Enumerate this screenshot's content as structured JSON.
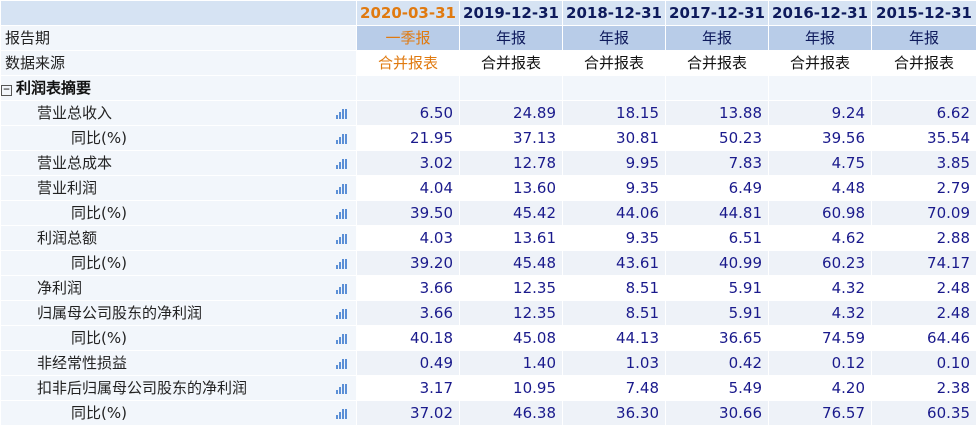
{
  "header": {
    "periods": [
      "2020-03-31",
      "2019-12-31",
      "2018-12-31",
      "2017-12-31",
      "2016-12-31",
      "2015-12-31"
    ]
  },
  "report_type_row": {
    "label": "报告期",
    "values": [
      "一季报",
      "年报",
      "年报",
      "年报",
      "年报",
      "年报"
    ]
  },
  "data_source_row": {
    "label": "数据来源",
    "values": [
      "合并报表",
      "合并报表",
      "合并报表",
      "合并报表",
      "合并报表",
      "合并报表"
    ]
  },
  "section": {
    "toggle": "⊟",
    "title": "利润表摘要"
  },
  "rows": [
    {
      "label": "营业总收入",
      "values": [
        "6.50",
        "24.89",
        "18.15",
        "13.88",
        "9.24",
        "6.62"
      ]
    },
    {
      "label": "同比(%)",
      "values": [
        "21.95",
        "37.13",
        "30.81",
        "50.23",
        "39.56",
        "35.54"
      ]
    },
    {
      "label": "营业总成本",
      "values": [
        "3.02",
        "12.78",
        "9.95",
        "7.83",
        "4.75",
        "3.85"
      ]
    },
    {
      "label": "营业利润",
      "values": [
        "4.04",
        "13.60",
        "9.35",
        "6.49",
        "4.48",
        "2.79"
      ]
    },
    {
      "label": "同比(%)",
      "values": [
        "39.50",
        "45.42",
        "44.06",
        "44.81",
        "60.98",
        "70.09"
      ]
    },
    {
      "label": "利润总额",
      "values": [
        "4.03",
        "13.61",
        "9.35",
        "6.51",
        "4.62",
        "2.88"
      ]
    },
    {
      "label": "同比(%)",
      "values": [
        "39.20",
        "45.48",
        "43.61",
        "40.99",
        "60.23",
        "74.17"
      ]
    },
    {
      "label": "净利润",
      "values": [
        "3.66",
        "12.35",
        "8.51",
        "5.91",
        "4.32",
        "2.48"
      ]
    },
    {
      "label": "归属母公司股东的净利润",
      "values": [
        "3.66",
        "12.35",
        "8.51",
        "5.91",
        "4.32",
        "2.48"
      ]
    },
    {
      "label": "同比(%)",
      "values": [
        "40.18",
        "45.08",
        "44.13",
        "36.65",
        "74.59",
        "64.46"
      ]
    },
    {
      "label": "非经常性损益",
      "values": [
        "0.49",
        "1.40",
        "1.03",
        "0.42",
        "0.12",
        "0.10"
      ]
    },
    {
      "label": "扣非后归属母公司股东的净利润",
      "values": [
        "3.17",
        "10.95",
        "7.48",
        "5.49",
        "4.20",
        "2.38"
      ]
    },
    {
      "label": "同比(%)",
      "values": [
        "37.02",
        "46.38",
        "36.30",
        "30.66",
        "76.57",
        "60.35"
      ]
    }
  ],
  "colors": {
    "header_bg": "#d6e3f3",
    "report_bg": "#b8cce8",
    "accent_current": "#e07a10",
    "value_text": "#1a1a8c",
    "chart_icon": "#5b8fd6"
  },
  "icons": {
    "row_chart": "bar-chart-icon"
  }
}
